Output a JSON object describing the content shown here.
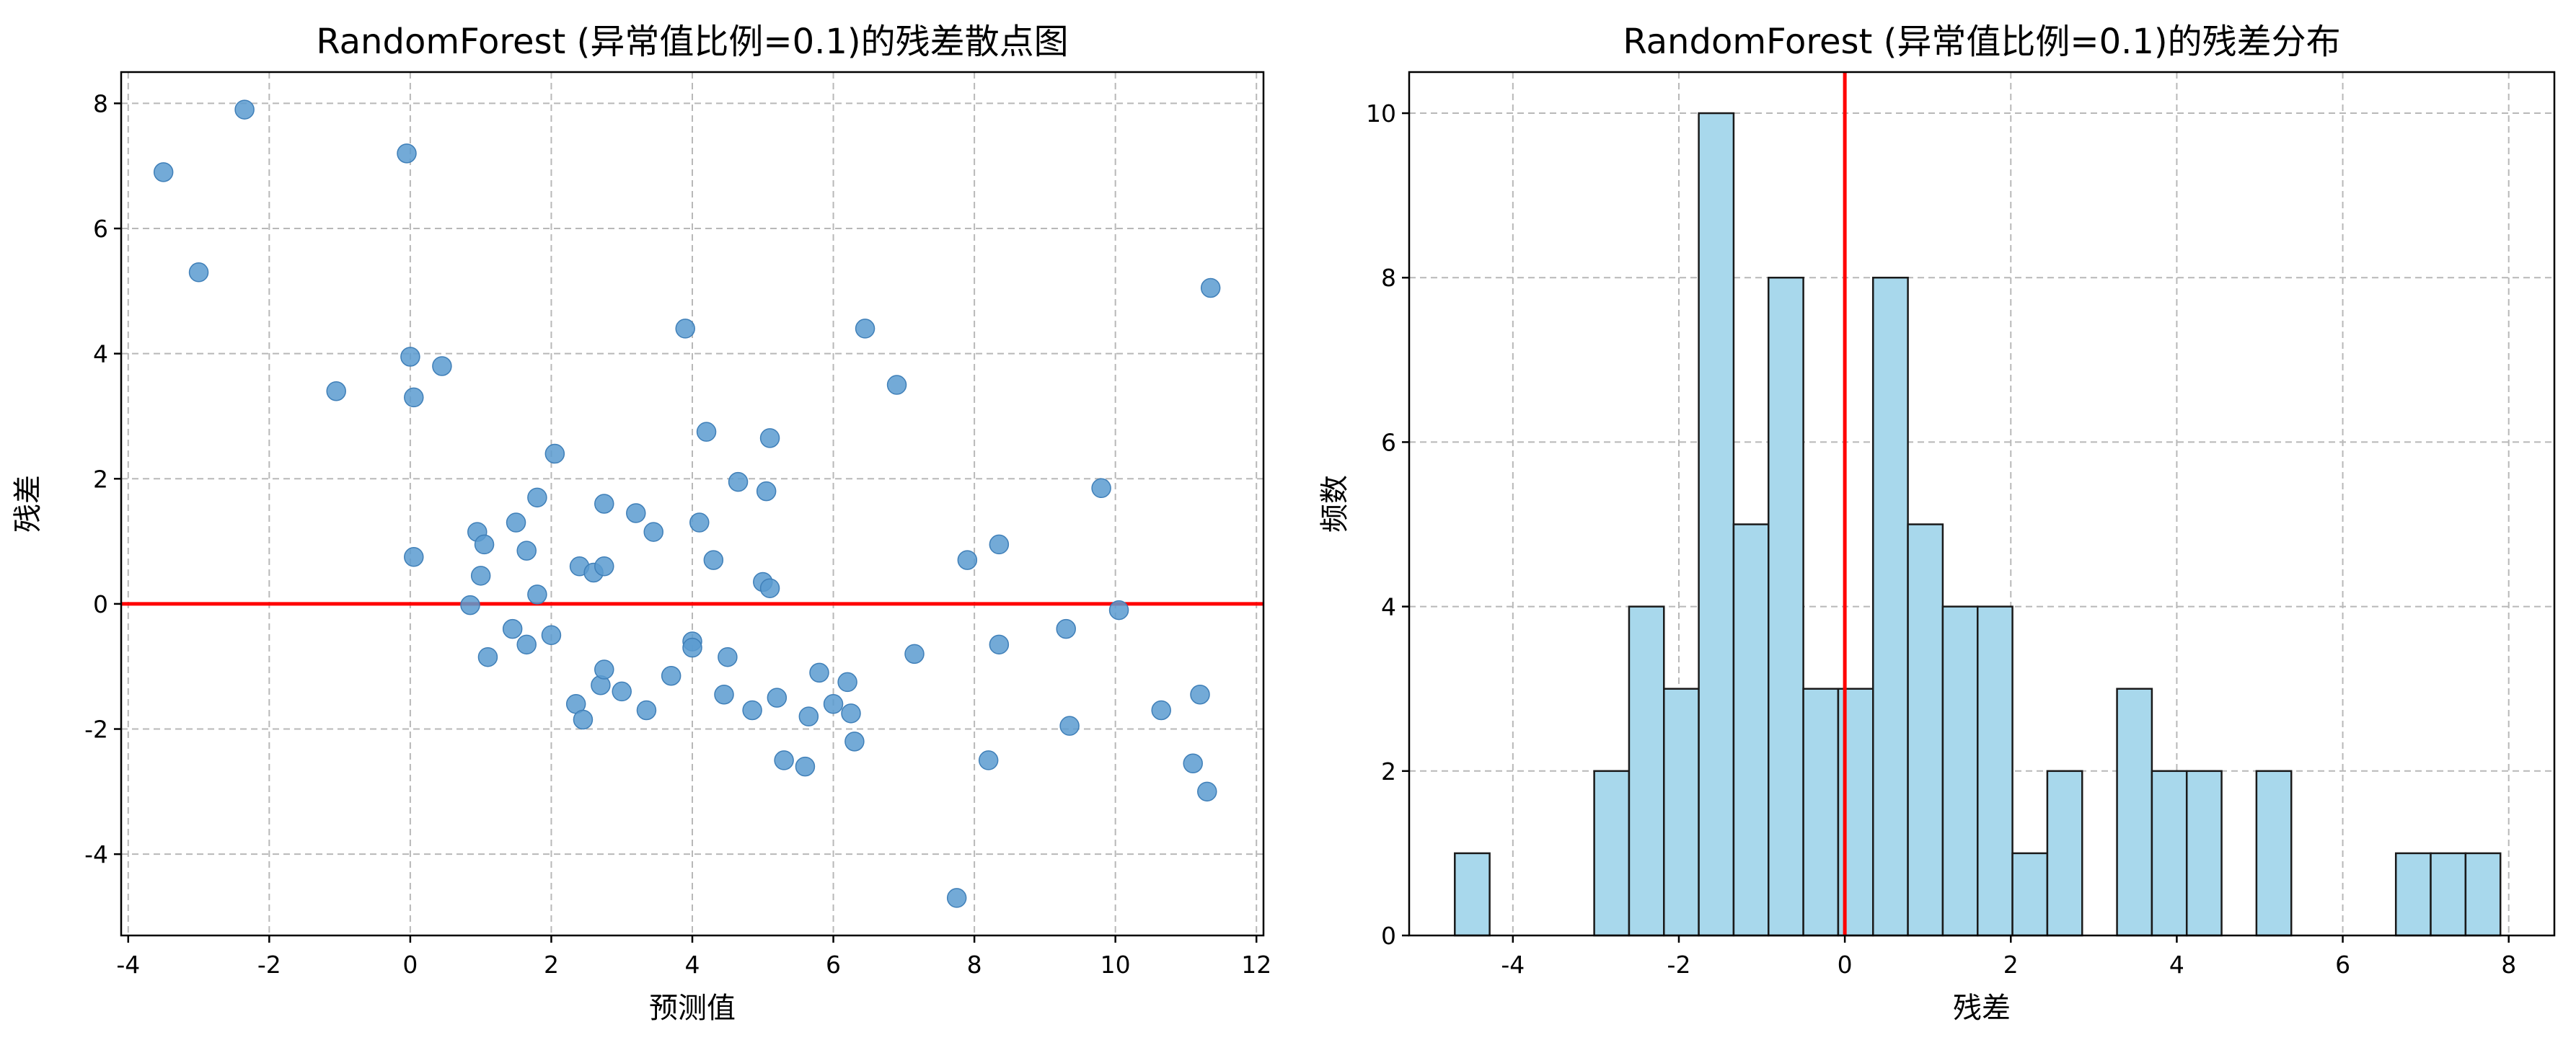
{
  "chart_data": [
    {
      "type": "scatter",
      "title": "RandomForest (异常值比例=0.1)的残差散点图",
      "xlabel": "预测值",
      "ylabel": "残差",
      "xlim": [
        -4.1,
        12.1
      ],
      "ylim": [
        -5.3,
        8.5
      ],
      "xticks": [
        -4,
        -2,
        0,
        2,
        4,
        6,
        8,
        10,
        12
      ],
      "yticks": [
        -4,
        -2,
        0,
        2,
        4,
        6,
        8
      ],
      "grid": true,
      "reference_line": {
        "y": 0,
        "color": "#ff0000"
      },
      "marker_color": "#5b9bd0",
      "points": [
        {
          "x": -3.5,
          "y": 6.9
        },
        {
          "x": -3.0,
          "y": 5.3
        },
        {
          "x": -2.35,
          "y": 7.9
        },
        {
          "x": -1.05,
          "y": 3.4
        },
        {
          "x": -0.05,
          "y": 7.2
        },
        {
          "x": 0.0,
          "y": 3.95
        },
        {
          "x": 0.05,
          "y": 3.3
        },
        {
          "x": 0.05,
          "y": 0.75
        },
        {
          "x": 0.45,
          "y": 3.8
        },
        {
          "x": 0.85,
          "y": -0.02
        },
        {
          "x": 0.95,
          "y": 1.15
        },
        {
          "x": 1.0,
          "y": 0.45
        },
        {
          "x": 1.05,
          "y": 0.95
        },
        {
          "x": 1.1,
          "y": -0.85
        },
        {
          "x": 1.45,
          "y": -0.4
        },
        {
          "x": 1.5,
          "y": 1.3
        },
        {
          "x": 1.65,
          "y": 0.85
        },
        {
          "x": 1.65,
          "y": -0.65
        },
        {
          "x": 1.8,
          "y": 1.7
        },
        {
          "x": 1.8,
          "y": 0.15
        },
        {
          "x": 2.0,
          "y": -0.5
        },
        {
          "x": 2.05,
          "y": 2.4
        },
        {
          "x": 2.35,
          "y": -1.6
        },
        {
          "x": 2.4,
          "y": 0.6
        },
        {
          "x": 2.45,
          "y": -1.85
        },
        {
          "x": 2.6,
          "y": 0.5
        },
        {
          "x": 2.7,
          "y": -1.3
        },
        {
          "x": 2.75,
          "y": 0.6
        },
        {
          "x": 2.75,
          "y": 1.6
        },
        {
          "x": 2.75,
          "y": -1.05
        },
        {
          "x": 3.0,
          "y": -1.4
        },
        {
          "x": 3.2,
          "y": 1.45
        },
        {
          "x": 3.35,
          "y": -1.7
        },
        {
          "x": 3.45,
          "y": 1.15
        },
        {
          "x": 3.7,
          "y": -1.15
        },
        {
          "x": 3.9,
          "y": 4.4
        },
        {
          "x": 4.0,
          "y": -0.6
        },
        {
          "x": 4.0,
          "y": -0.7
        },
        {
          "x": 4.1,
          "y": 1.3
        },
        {
          "x": 4.2,
          "y": 2.75
        },
        {
          "x": 4.3,
          "y": 0.7
        },
        {
          "x": 4.45,
          "y": -1.45
        },
        {
          "x": 4.5,
          "y": -0.85
        },
        {
          "x": 4.65,
          "y": 1.95
        },
        {
          "x": 4.85,
          "y": -1.7
        },
        {
          "x": 5.0,
          "y": 0.35
        },
        {
          "x": 5.05,
          "y": 1.8
        },
        {
          "x": 5.1,
          "y": 0.25
        },
        {
          "x": 5.1,
          "y": 2.65
        },
        {
          "x": 5.2,
          "y": -1.5
        },
        {
          "x": 5.3,
          "y": -2.5
        },
        {
          "x": 5.6,
          "y": -2.6
        },
        {
          "x": 5.65,
          "y": -1.8
        },
        {
          "x": 5.8,
          "y": -1.1
        },
        {
          "x": 6.0,
          "y": -1.6
        },
        {
          "x": 6.2,
          "y": -1.25
        },
        {
          "x": 6.25,
          "y": -1.75
        },
        {
          "x": 6.3,
          "y": -2.2
        },
        {
          "x": 6.45,
          "y": 4.4
        },
        {
          "x": 6.9,
          "y": 3.5
        },
        {
          "x": 7.15,
          "y": -0.8
        },
        {
          "x": 7.75,
          "y": -4.7
        },
        {
          "x": 7.9,
          "y": 0.7
        },
        {
          "x": 8.2,
          "y": -2.5
        },
        {
          "x": 8.35,
          "y": 0.95
        },
        {
          "x": 8.35,
          "y": -0.65
        },
        {
          "x": 9.3,
          "y": -0.4
        },
        {
          "x": 9.35,
          "y": -1.95
        },
        {
          "x": 9.8,
          "y": 1.85
        },
        {
          "x": 10.05,
          "y": -0.1
        },
        {
          "x": 10.65,
          "y": -1.7
        },
        {
          "x": 11.1,
          "y": -2.55
        },
        {
          "x": 11.2,
          "y": -1.45
        },
        {
          "x": 11.3,
          "y": -3.0
        },
        {
          "x": 11.35,
          "y": 5.05
        }
      ]
    },
    {
      "type": "histogram",
      "title": "RandomForest (异常值比例=0.1)的残差分布",
      "xlabel": "残差",
      "ylabel": "频数",
      "xlim": [
        -5.25,
        8.55
      ],
      "ylim": [
        0,
        10.5
      ],
      "xticks": [
        -4,
        -2,
        0,
        2,
        4,
        6,
        8
      ],
      "yticks": [
        0,
        2,
        4,
        6,
        8,
        10
      ],
      "grid": true,
      "reference_line": {
        "x": 0,
        "color": "#ff0000"
      },
      "bar_color": "#a8d8ec",
      "bin_start": -4.7,
      "bin_width": 0.42,
      "counts": [
        1,
        0,
        0,
        0,
        2,
        4,
        3,
        10,
        5,
        8,
        3,
        3,
        8,
        5,
        4,
        4,
        1,
        2,
        0,
        3,
        2,
        2,
        0,
        2,
        0,
        0,
        0,
        1,
        1,
        1
      ]
    }
  ]
}
